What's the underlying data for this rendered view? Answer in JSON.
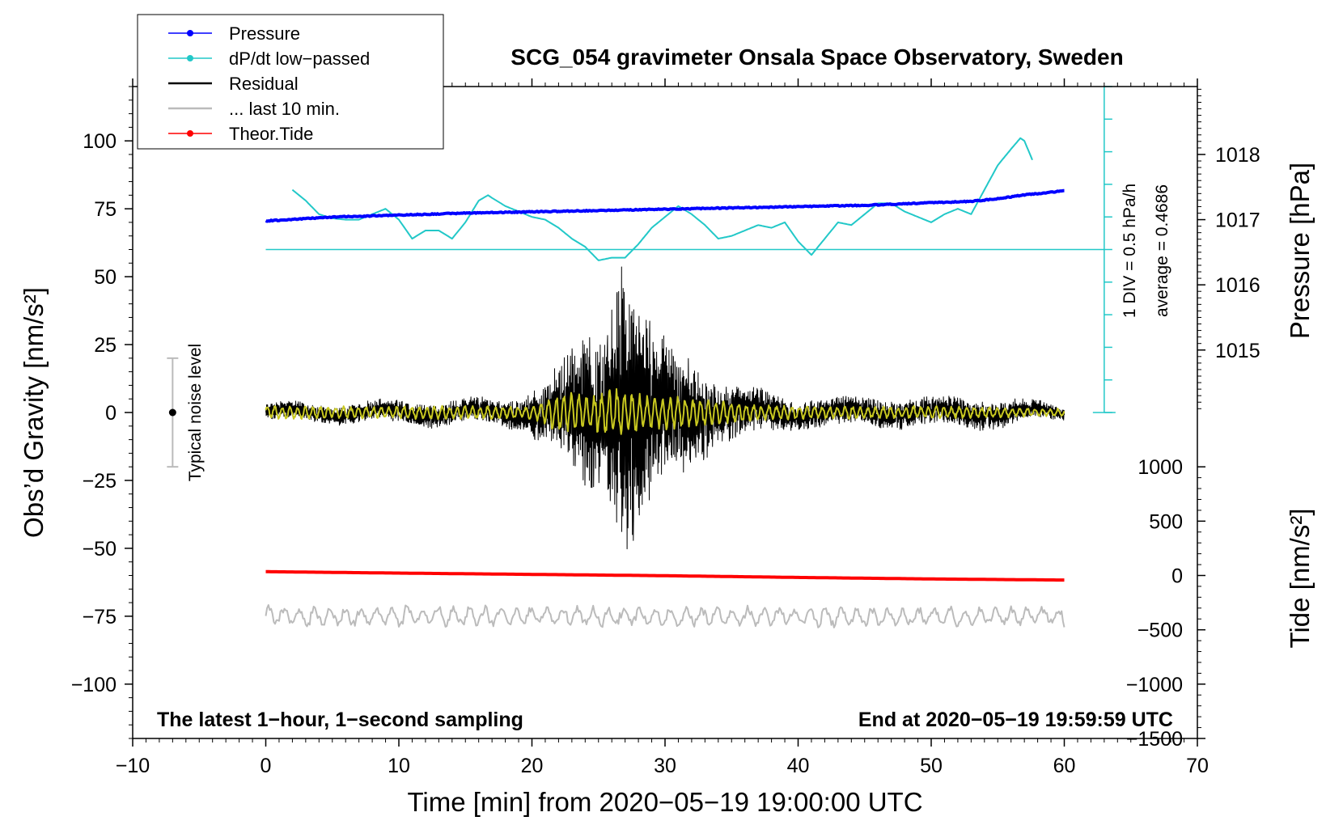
{
  "chart_data": {
    "type": "line",
    "title": "SCG_054 gravimeter Onsala Space Observatory, Sweden",
    "xlabel": "Time [min] from 2020−05−19 19:00:00 UTC",
    "ylabel_left": "Obs’d Gravity [nm/s²]",
    "ylabel_right_pressure": "Pressure [hPa]",
    "ylabel_right_tide": "Tide [nm/s²]",
    "xlim": [
      -10,
      70
    ],
    "ylim_left": [
      -120,
      120
    ],
    "x_ticks": [
      -10,
      0,
      10,
      20,
      30,
      40,
      50,
      60,
      70
    ],
    "x_tick_labels": [
      "−10",
      "0",
      "10",
      "20",
      "30",
      "40",
      "50",
      "60",
      "70"
    ],
    "y_ticks_left": [
      100,
      75,
      50,
      25,
      0,
      -25,
      -50,
      -75,
      -100
    ],
    "y_tick_labels_left": [
      "100",
      "75",
      "50",
      "25",
      "0",
      "−25",
      "−50",
      "−75",
      "−100"
    ],
    "pressure_axis": {
      "ticks": [
        1018,
        1017,
        1016,
        1015
      ],
      "tick_labels": [
        "1018",
        "1017",
        "1016",
        "1015"
      ],
      "left_equiv": [
        95,
        71,
        47,
        23
      ]
    },
    "tide_axis": {
      "ticks": [
        1000,
        500,
        0,
        -500,
        -1000,
        -1500
      ],
      "tick_labels": [
        "1000",
        "500",
        "0",
        "−500",
        "−1000",
        "−1500"
      ],
      "left_equiv": [
        -20,
        -40,
        -60,
        -80,
        -100,
        -120
      ]
    },
    "legend": {
      "position": "top-left",
      "entries": [
        {
          "label": "Pressure",
          "color": "#0000ff",
          "marker": true
        },
        {
          "label": "dP/dt low−passed",
          "color": "#22c8c8",
          "marker": true
        },
        {
          "label": "Residual",
          "color": "#000000",
          "marker": false
        },
        {
          "label": "... last 10 min.",
          "color": "#bbbbbb",
          "marker": false
        },
        {
          "label": "Theor.Tide",
          "color": "#ff0000",
          "marker": true
        }
      ]
    },
    "series": [
      {
        "name": "Pressure",
        "color": "#0000ff",
        "axis": "pressure",
        "x": [
          0,
          5,
          10,
          15,
          20,
          25,
          30,
          35,
          40,
          45,
          50,
          53,
          55,
          57,
          60
        ],
        "values": [
          1016.98,
          1017.04,
          1017.07,
          1017.1,
          1017.12,
          1017.14,
          1017.16,
          1017.18,
          1017.2,
          1017.22,
          1017.26,
          1017.28,
          1017.32,
          1017.38,
          1017.44
        ]
      },
      {
        "name": "dP/dt low−passed",
        "color": "#22c8c8",
        "axis": "left",
        "x": [
          2,
          3,
          4,
          5,
          6,
          7,
          8,
          9,
          10,
          11,
          12,
          13,
          14,
          15,
          16,
          16.7,
          17,
          18,
          19,
          20,
          21,
          22,
          23,
          24,
          25,
          26,
          27,
          28,
          29,
          30,
          31,
          32,
          33,
          34,
          35,
          36,
          37,
          38,
          39,
          40,
          41,
          42,
          43,
          44,
          45,
          46,
          47,
          48,
          49,
          50,
          51,
          52,
          53,
          54,
          55,
          56,
          56.7,
          57,
          57.6
        ],
        "values": [
          82,
          78,
          73,
          71.5,
          71,
          71,
          73,
          75,
          71,
          64,
          67,
          67,
          64,
          70,
          78,
          80,
          79,
          76,
          74,
          72,
          71,
          68,
          64,
          61,
          56,
          57,
          57,
          62,
          68,
          72,
          76,
          73,
          69,
          64,
          65,
          67,
          69,
          68,
          70,
          63,
          58,
          64,
          70,
          69,
          73,
          77,
          77,
          74,
          72,
          70,
          73,
          75,
          73,
          82,
          91,
          97,
          101,
          100,
          93
        ]
      },
      {
        "name": "dP/dt baseline",
        "color": "#22c8c8",
        "axis": "left",
        "x": [
          0,
          63
        ],
        "values": [
          60,
          60
        ]
      },
      {
        "name": "Residual",
        "color": "#000000",
        "axis": "left",
        "x": [
          0,
          5,
          10,
          15,
          19,
          20,
          22,
          24,
          25,
          26,
          26.5,
          27,
          27.5,
          28,
          29,
          30,
          31,
          32,
          33,
          34,
          35,
          36,
          40,
          45,
          50,
          55,
          60
        ],
        "values": [
          3,
          -3,
          4,
          -4,
          5,
          -8,
          15,
          -28,
          25,
          -38,
          52,
          -49,
          47,
          -40,
          30,
          -25,
          22,
          -18,
          15,
          -10,
          12,
          -8,
          5,
          -5,
          5,
          -5,
          2
        ]
      },
      {
        "name": "Residual (low−passed)",
        "color": "#c8c820",
        "axis": "left",
        "x": [
          0,
          10,
          20,
          22,
          24,
          26,
          27,
          28,
          30,
          33,
          36,
          40,
          50,
          60
        ],
        "values": [
          1,
          -1,
          1,
          -6,
          6,
          -8,
          8,
          -6,
          5,
          -4,
          2,
          -1,
          1,
          0
        ]
      },
      {
        "name": "... last 10 min.",
        "color": "#bbbbbb",
        "axis": "left",
        "x": [
          0,
          10,
          20,
          30,
          40,
          50,
          60
        ],
        "values": [
          -75,
          -75,
          -75,
          -75,
          -75,
          -75,
          -75
        ]
      },
      {
        "name": "Theor.Tide",
        "color": "#ff0000",
        "axis": "tide",
        "x": [
          0,
          10,
          20,
          30,
          40,
          50,
          60
        ],
        "values": [
          35,
          22,
          10,
          -2,
          -18,
          -32,
          -42
        ]
      }
    ],
    "annotations": {
      "noise_label": "Typical noise level",
      "noise_bar": {
        "x": -7,
        "ymin": -20,
        "ymax": 20,
        "center": 0
      },
      "scale_text1": "1 DIV = 0.5 hPa/h",
      "scale_text2": "average = 0.4686",
      "scale_bar": {
        "x": 63,
        "ymin": 0,
        "ymax": 120,
        "div_step": 12
      },
      "footer_left": "The latest 1−hour, 1−second sampling",
      "footer_right": "End at 2020−05−19 19:59:59 UTC"
    }
  }
}
